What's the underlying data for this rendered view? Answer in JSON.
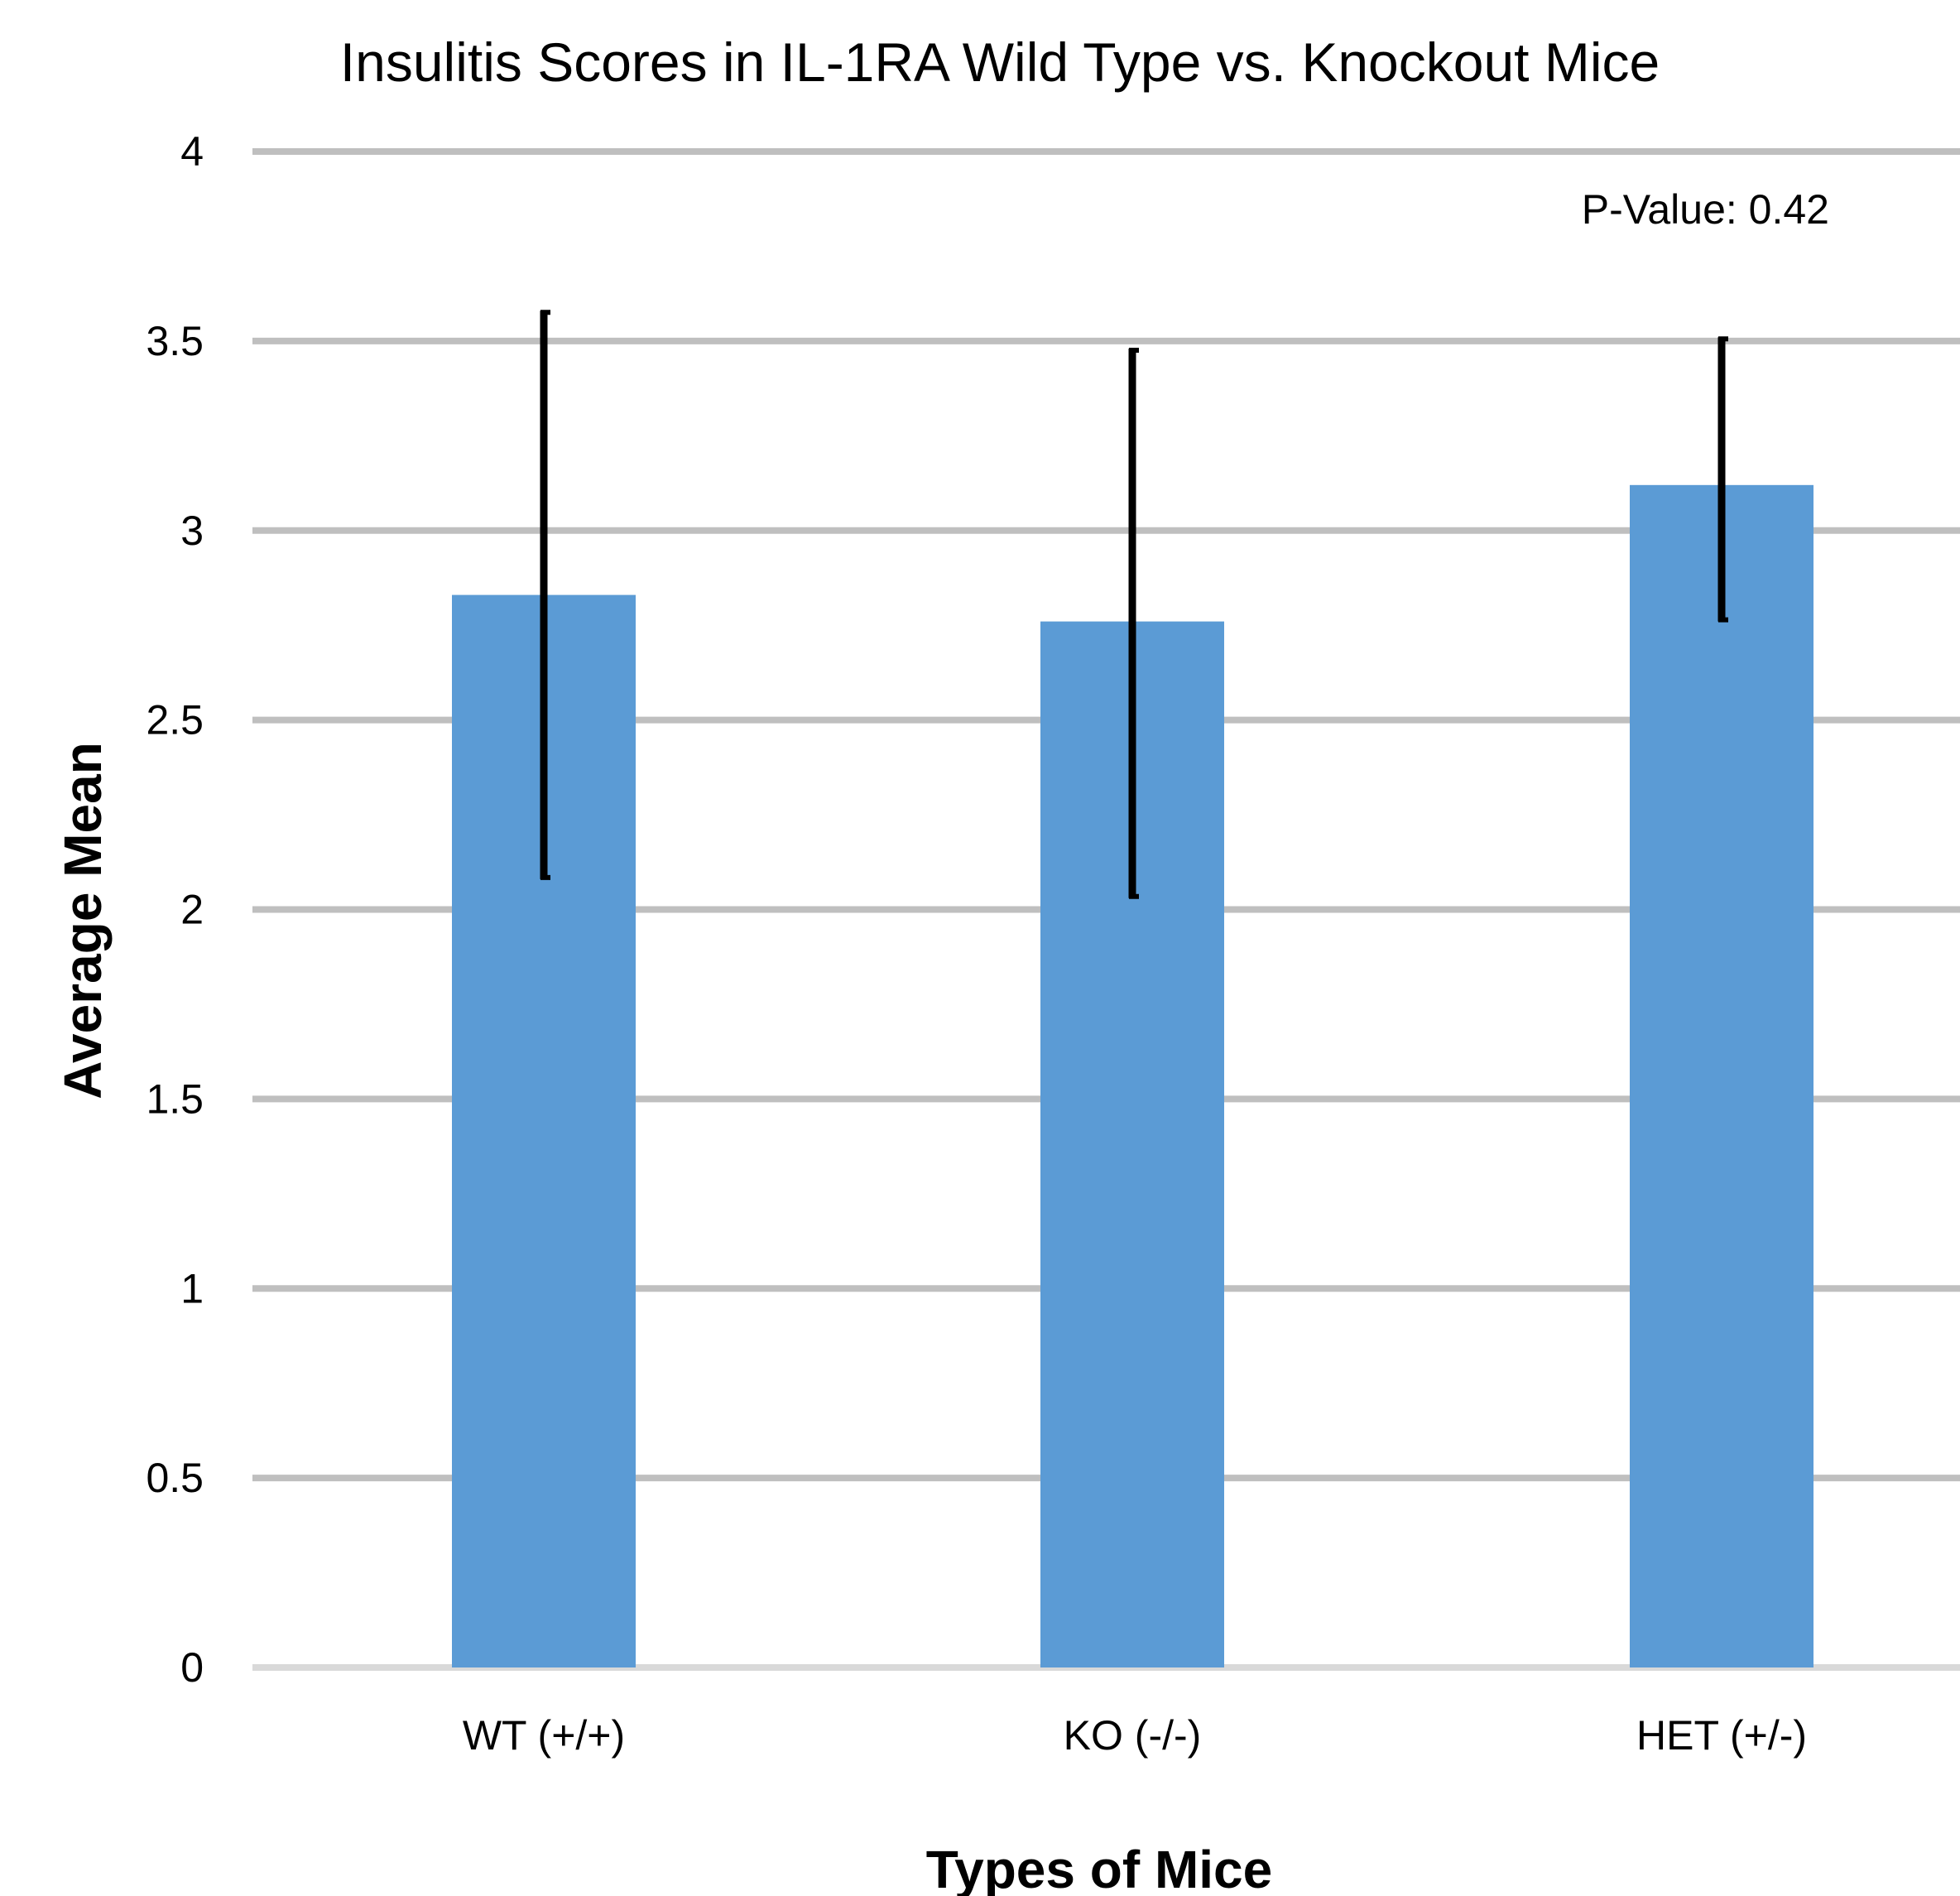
{
  "chart_data": {
    "type": "bar",
    "title": "Insulitis Scores in  IL-1RA Wild Type vs. Knockout Mice",
    "xlabel": "Types of Mice",
    "ylabel": "Average Mean",
    "categories": [
      "WT (+/+)",
      "KO (-/-)",
      "HET (+/-)"
    ],
    "values": [
      2.83,
      2.76,
      3.12
    ],
    "error_bars": [
      {
        "lower": 2.08,
        "upper": 3.58
      },
      {
        "lower": 2.03,
        "upper": 3.48
      },
      {
        "lower": 2.76,
        "upper": 3.51
      }
    ],
    "ylim": [
      0,
      4
    ],
    "yticks": [
      "0",
      "0.5",
      "1",
      "1.5",
      "2",
      "2.5",
      "3",
      "3.5",
      "4"
    ],
    "ytick_values": [
      0,
      0.5,
      1,
      1.5,
      2,
      2.5,
      3,
      3.5,
      4
    ],
    "annotation": "P-Value: 0.42",
    "grid": true,
    "colors": {
      "bar": "#5b9bd5",
      "gridline": "#bfbfbf",
      "baseline": "#d9d9d9",
      "error_bar": "#000000"
    }
  }
}
